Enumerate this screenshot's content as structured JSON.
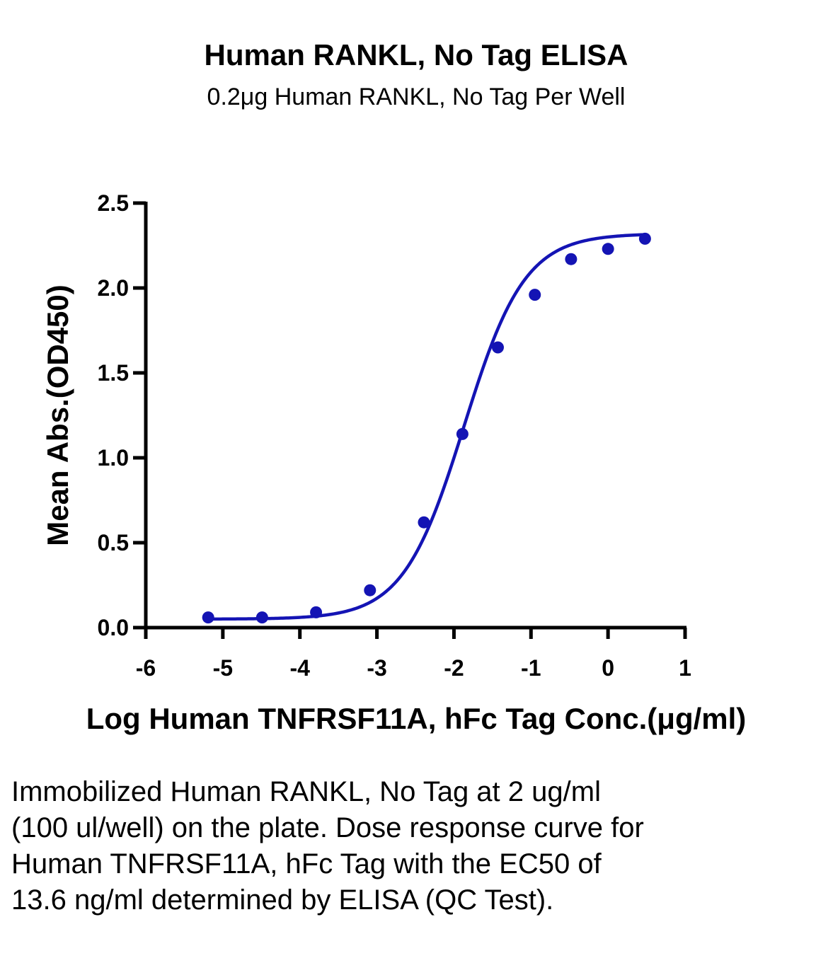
{
  "chart_data": {
    "type": "scatter",
    "title": "Human RANKL, No Tag ELISA",
    "subtitle": "0.2μg Human RANKL, No Tag Per Well",
    "xlabel": "Log Human TNFRSF11A, hFc Tag Conc.(μg/ml)",
    "ylabel": "Mean Abs.(OD450)",
    "xlim": [
      -6,
      1
    ],
    "ylim": [
      0,
      2.5
    ],
    "x_ticks": [
      "-6",
      "-5",
      "-4",
      "-3",
      "-2",
      "-1",
      "0",
      "1"
    ],
    "y_ticks": [
      "0.0",
      "0.5",
      "1.0",
      "1.5",
      "2.0",
      "2.5"
    ],
    "grid": false,
    "series": [
      {
        "color": "#1414b4",
        "x": [
          -5.19,
          -4.49,
          -3.79,
          -3.09,
          -2.39,
          -1.89,
          -1.43,
          -0.95,
          -0.48,
          0.0,
          0.48
        ],
        "y": [
          0.06,
          0.06,
          0.09,
          0.22,
          0.62,
          1.14,
          1.65,
          1.96,
          2.17,
          2.23,
          2.29
        ]
      }
    ],
    "fit_curve": {
      "type": "4PL",
      "bottom": 0.05,
      "top": 2.32,
      "log_ec50": -1.87,
      "hill_slope": 1.1
    }
  },
  "caption": "Immobilized Human RANKL, No Tag at 2 ug/ml (100 ul/well) on the plate. Dose response curve for Human TNFRSF11A, hFc Tag with the EC50 of 13.6 ng/ml determined by ELISA (QC Test)."
}
